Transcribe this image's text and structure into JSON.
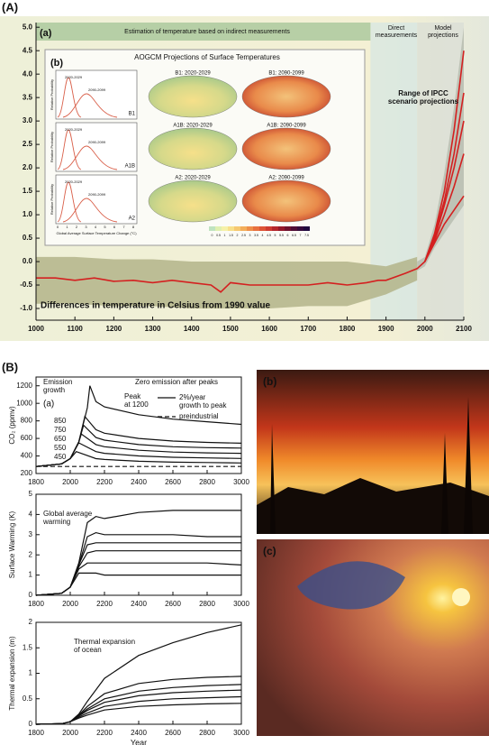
{
  "figure": {
    "label_A": "(A)",
    "label_B": "(B)",
    "photo_b": "(b)",
    "photo_c": "(c)",
    "inset": {
      "label": "(b)",
      "title": "AOGCM Projections of Surface Temperatures",
      "rows": [
        {
          "scenario": "B1",
          "maps": [
            "B1: 2020-2029",
            "B1: 2090-2099"
          ]
        },
        {
          "scenario": "A1B",
          "maps": [
            "A1B: 2020-2029",
            "A1B: 2090-2099"
          ]
        },
        {
          "scenario": "A2",
          "maps": [
            "A2: 2020-2029",
            "A2: 2090-2099"
          ]
        }
      ],
      "periods": [
        "2020-2029",
        "2090-2099"
      ],
      "y_label": "Relative Probability",
      "x_label": "Global Average Surface Temperature Change (°C)",
      "x_ticks": [
        0,
        1,
        2,
        3,
        4,
        5,
        6,
        7,
        8
      ],
      "colorbar": [
        0,
        0.5,
        1,
        1.5,
        2,
        2.5,
        3,
        3.5,
        4,
        4.5,
        5,
        5.5,
        6,
        6.5,
        7,
        7.5
      ]
    }
  },
  "chart_data": [
    {
      "type": "line",
      "annotations": [
        "(a)",
        "Estimation of temperature based on indirect measurements",
        "Direct measurements",
        "Model projections",
        "Range of IPCC scenario projections",
        "Differences in temperature in Celsius from 1990 value"
      ],
      "xlim": [
        1000,
        2100
      ],
      "xticks": [
        1000,
        1100,
        1200,
        1300,
        1400,
        1500,
        1600,
        1700,
        1800,
        1900,
        2000,
        2100
      ],
      "ylim": [
        -1.25,
        5.1
      ],
      "yticks": [
        {
          "value": -1.0,
          "label": "-1.0"
        },
        -0.5,
        {
          "value": 0.0,
          "label": "0.0"
        },
        0.5,
        {
          "value": 1.0,
          "label": "1.0"
        },
        1.5,
        {
          "value": 2.0,
          "label": "2.0"
        },
        2.5,
        {
          "value": 3.0,
          "label": "3.0"
        },
        3.5,
        {
          "value": 4.0,
          "label": "4.0"
        },
        4.5,
        {
          "value": 5.0,
          "label": "5.0"
        }
      ],
      "bands": [
        {
          "color": "#b3b489",
          "x": [
            1000,
            1100,
            1200,
            1300,
            1400,
            1500,
            1600,
            1700,
            1800,
            1900,
            1980
          ],
          "lower": [
            -0.9,
            -0.9,
            -0.95,
            -0.95,
            -1.0,
            -1.0,
            -1.0,
            -0.95,
            -0.95,
            -0.7,
            -0.4
          ],
          "upper": [
            0.1,
            0.1,
            0.05,
            0.05,
            0.0,
            0.0,
            0.0,
            0.0,
            0.0,
            -0.1,
            0.1
          ]
        },
        {
          "color": "#b9bdb0",
          "x": [
            1980,
            2000,
            2025,
            2050,
            2075,
            2100
          ],
          "lower": [
            -0.2,
            -0.1,
            0.3,
            0.6,
            0.9,
            1.2
          ],
          "upper": [
            0.0,
            0.1,
            0.8,
            1.9,
            3.3,
            5.0
          ]
        }
      ],
      "series": [
        {
          "color": "#d42020",
          "x": [
            1000,
            1050,
            1100,
            1150,
            1200,
            1250,
            1300,
            1350,
            1400,
            1450,
            1475,
            1500,
            1550,
            1600,
            1650,
            1700,
            1750,
            1800,
            1850,
            1880,
            1900,
            1950,
            1980,
            2000
          ],
          "values": [
            -0.35,
            -0.35,
            -0.4,
            -0.35,
            -0.42,
            -0.4,
            -0.45,
            -0.4,
            -0.45,
            -0.5,
            -0.65,
            -0.45,
            -0.5,
            -0.5,
            -0.5,
            -0.5,
            -0.45,
            -0.5,
            -0.45,
            -0.4,
            -0.4,
            -0.25,
            -0.15,
            0.0
          ]
        },
        {
          "color": "#d42020",
          "x": [
            2000,
            2025,
            2050,
            2075,
            2100
          ],
          "values": [
            0.0,
            0.6,
            1.5,
            2.8,
            4.5
          ]
        },
        {
          "color": "#d42020",
          "x": [
            2000,
            2025,
            2050,
            2075,
            2100
          ],
          "values": [
            0.0,
            0.55,
            1.3,
            2.3,
            3.6
          ]
        },
        {
          "color": "#d42020",
          "x": [
            2000,
            2025,
            2050,
            2075,
            2100
          ],
          "values": [
            0.0,
            0.5,
            1.2,
            2.0,
            3.0
          ]
        },
        {
          "color": "#d42020",
          "x": [
            2000,
            2025,
            2050,
            2075,
            2100
          ],
          "values": [
            0.0,
            0.45,
            1.0,
            1.6,
            2.3
          ]
        },
        {
          "color": "#d42020",
          "x": [
            2000,
            2025,
            2050,
            2075,
            2100
          ],
          "values": [
            0.0,
            0.4,
            0.8,
            1.1,
            1.4
          ]
        }
      ]
    },
    {
      "type": "line",
      "y_label": "CO₂ (ppmv)",
      "annotations": [
        "(a)",
        "Emission growth",
        "Zero emission after peaks",
        "Peak at 1200",
        "850",
        "750",
        "650",
        "550",
        "450"
      ],
      "xlim": [
        1800,
        3000
      ],
      "xticks": [
        1800,
        2000,
        2200,
        2400,
        2600,
        2800,
        3000
      ],
      "ylim": [
        200,
        1300
      ],
      "yticks": [
        200,
        400,
        600,
        800,
        1000,
        1200
      ],
      "series": [
        {
          "name": "2%/year growth to peak",
          "color": "#111",
          "x": [
            1800,
            1950,
            2000,
            2050,
            2100,
            2115,
            2150,
            2200,
            2400,
            2600,
            2800,
            3000
          ],
          "values": [
            280,
            310,
            370,
            560,
            950,
            1200,
            1020,
            960,
            870,
            820,
            790,
            760
          ]
        },
        {
          "color": "#111",
          "x": [
            1800,
            1950,
            2000,
            2050,
            2085,
            2150,
            2200,
            2400,
            2600,
            2800,
            3000
          ],
          "values": [
            280,
            310,
            370,
            560,
            850,
            700,
            660,
            600,
            570,
            555,
            545
          ]
        },
        {
          "color": "#111",
          "x": [
            1800,
            1950,
            2000,
            2050,
            2078,
            2150,
            2200,
            2400,
            2600,
            2800,
            3000
          ],
          "values": [
            280,
            310,
            370,
            560,
            750,
            610,
            580,
            530,
            505,
            495,
            490
          ]
        },
        {
          "color": "#111",
          "x": [
            1800,
            1950,
            2000,
            2050,
            2065,
            2150,
            2200,
            2400,
            2600,
            2800,
            3000
          ],
          "values": [
            280,
            310,
            370,
            560,
            650,
            530,
            505,
            465,
            445,
            435,
            430
          ]
        },
        {
          "color": "#111",
          "x": [
            1800,
            1950,
            2000,
            2050,
            2150,
            2200,
            2400,
            2600,
            2800,
            3000
          ],
          "values": [
            280,
            310,
            370,
            550,
            450,
            430,
            400,
            385,
            378,
            372
          ]
        },
        {
          "color": "#111",
          "x": [
            1800,
            1950,
            2000,
            2035,
            2150,
            2200,
            2400,
            2600,
            2800,
            3000
          ],
          "values": [
            280,
            310,
            370,
            450,
            370,
            360,
            340,
            330,
            325,
            320
          ]
        },
        {
          "name": "preindustrial",
          "color": "#111",
          "dashed": true,
          "x": [
            1800,
            3000
          ],
          "values": [
            280,
            280
          ]
        }
      ]
    },
    {
      "type": "line",
      "y_label": "Surface Warming (K)",
      "annotations": [
        "Global average warming"
      ],
      "xlim": [
        1800,
        3000
      ],
      "xticks": [
        1800,
        2000,
        2200,
        2400,
        2600,
        2800,
        3000
      ],
      "ylim": [
        0,
        5
      ],
      "yticks": [
        0,
        1,
        2,
        3,
        4,
        5
      ],
      "x": [
        1800,
        1950,
        2000,
        2050,
        2100,
        2150,
        2200,
        2400,
        2600,
        2800,
        3000
      ],
      "series": [
        {
          "color": "#111",
          "values": [
            0,
            0.1,
            0.4,
            1.6,
            3.6,
            3.9,
            3.8,
            4.1,
            4.2,
            4.2,
            4.2
          ]
        },
        {
          "color": "#111",
          "values": [
            0,
            0.1,
            0.4,
            1.5,
            2.9,
            3.1,
            3.0,
            3.0,
            3.0,
            2.9,
            2.9
          ]
        },
        {
          "color": "#111",
          "values": [
            0,
            0.1,
            0.4,
            1.5,
            2.5,
            2.6,
            2.6,
            2.6,
            2.6,
            2.6,
            2.6
          ]
        },
        {
          "color": "#111",
          "values": [
            0,
            0.1,
            0.4,
            1.4,
            2.1,
            2.2,
            2.2,
            2.2,
            2.2,
            2.2,
            2.2
          ]
        },
        {
          "color": "#111",
          "values": [
            0,
            0.1,
            0.4,
            1.3,
            1.6,
            1.6,
            1.6,
            1.6,
            1.6,
            1.6,
            1.5
          ]
        },
        {
          "color": "#111",
          "values": [
            0,
            0.1,
            0.4,
            1.1,
            1.1,
            1.1,
            1.0,
            1.0,
            1.0,
            1.0,
            1.0
          ]
        }
      ]
    },
    {
      "type": "line",
      "y_label": "Thermal expansion (m)",
      "x_label": "Year",
      "annotations": [
        "Thermal expansion of ocean"
      ],
      "xlim": [
        1800,
        3000
      ],
      "xticks": [
        1800,
        2000,
        2200,
        2400,
        2600,
        2800,
        3000
      ],
      "ylim": [
        0,
        2
      ],
      "yticks": [
        0,
        0.5,
        1,
        1.5,
        2
      ],
      "x": [
        1800,
        1950,
        2000,
        2050,
        2100,
        2200,
        2400,
        2600,
        2800,
        3000
      ],
      "series": [
        {
          "color": "#111",
          "values": [
            0,
            0.01,
            0.05,
            0.2,
            0.45,
            0.9,
            1.35,
            1.6,
            1.8,
            1.95
          ]
        },
        {
          "color": "#111",
          "values": [
            0,
            0.01,
            0.05,
            0.18,
            0.35,
            0.6,
            0.8,
            0.88,
            0.92,
            0.94
          ]
        },
        {
          "color": "#111",
          "values": [
            0,
            0.01,
            0.05,
            0.17,
            0.3,
            0.5,
            0.65,
            0.72,
            0.76,
            0.78
          ]
        },
        {
          "color": "#111",
          "values": [
            0,
            0.01,
            0.05,
            0.16,
            0.27,
            0.43,
            0.56,
            0.62,
            0.65,
            0.67
          ]
        },
        {
          "color": "#111",
          "values": [
            0,
            0.01,
            0.05,
            0.14,
            0.22,
            0.35,
            0.45,
            0.5,
            0.52,
            0.54
          ]
        },
        {
          "color": "#111",
          "values": [
            0,
            0.01,
            0.05,
            0.12,
            0.18,
            0.28,
            0.35,
            0.38,
            0.4,
            0.41
          ]
        }
      ]
    }
  ]
}
